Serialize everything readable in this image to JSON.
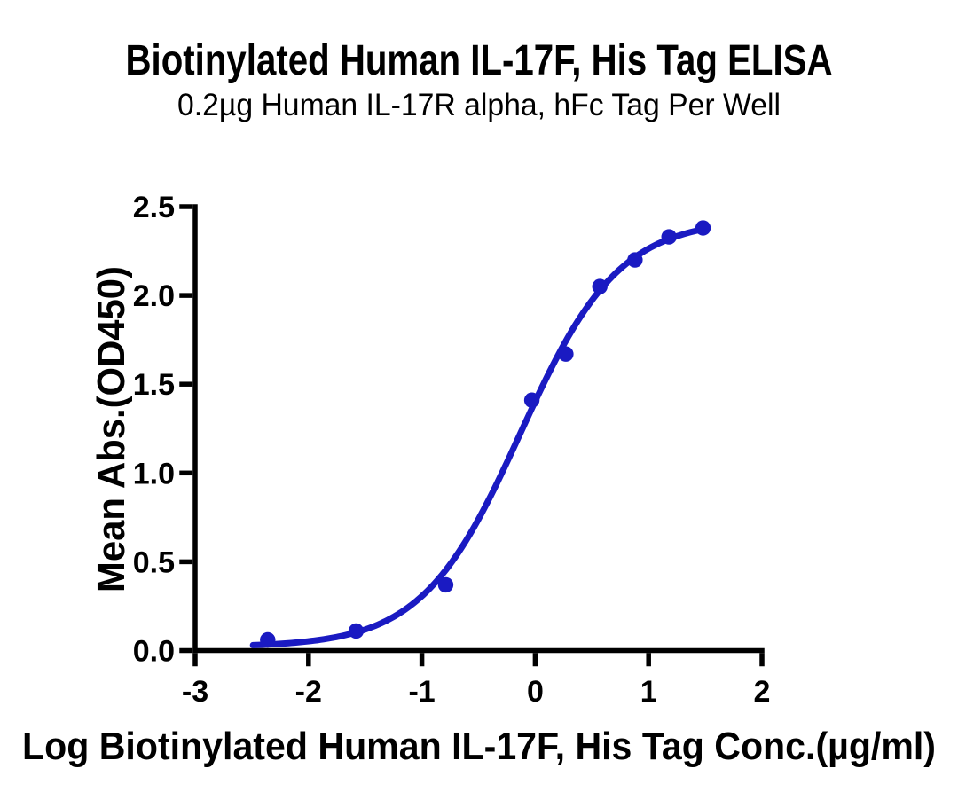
{
  "page": {
    "title": "Biotinylated Human IL-17F, His Tag ELISA",
    "subtitle": "0.2µg Human IL-17R alpha, hFc Tag Per Well"
  },
  "chart_data": {
    "type": "scatter",
    "title": "Biotinylated Human IL-17F, His Tag ELISA",
    "subtitle": "0.2µg Human IL-17R alpha, hFc Tag Per Well",
    "xlabel": "Log Biotinylated Human IL-17F, His Tag Conc.(µg/ml)",
    "ylabel": "Mean Abs.(OD450)",
    "xlim": [
      -3,
      2
    ],
    "ylim": [
      0,
      2.5
    ],
    "x_ticks": [
      -3,
      -2,
      -1,
      0,
      1,
      2
    ],
    "x_tick_labels": [
      "-3",
      "-2",
      "-1",
      "0",
      "1",
      "2"
    ],
    "y_ticks": [
      0,
      0.5,
      1,
      1.5,
      2,
      2.5
    ],
    "y_tick_labels": [
      "0.0",
      "0.5",
      "1.0",
      "1.5",
      "2.0",
      "2.5"
    ],
    "grid": false,
    "legend": "none",
    "series": [
      {
        "name": "Biotinylated Human IL-17F, His Tag",
        "marker": "circle",
        "color": "#1a1ac2",
        "x": [
          -2.36,
          -1.58,
          -0.79,
          -0.03,
          0.27,
          0.57,
          0.88,
          1.18,
          1.48
        ],
        "y": [
          0.06,
          0.11,
          0.37,
          1.41,
          1.67,
          2.05,
          2.2,
          2.33,
          2.38
        ]
      }
    ],
    "fit_curve": {
      "model": "4PL",
      "bottom": 0.02,
      "top": 2.43,
      "logEC50": -0.13,
      "hill": 1.0,
      "x_start": -2.49,
      "x_end": 1.48,
      "color": "#1a1ac2"
    },
    "colors": {
      "accent": "#1a1ac2",
      "axis": "#000000",
      "text": "#000000",
      "background": "#ffffff"
    }
  }
}
